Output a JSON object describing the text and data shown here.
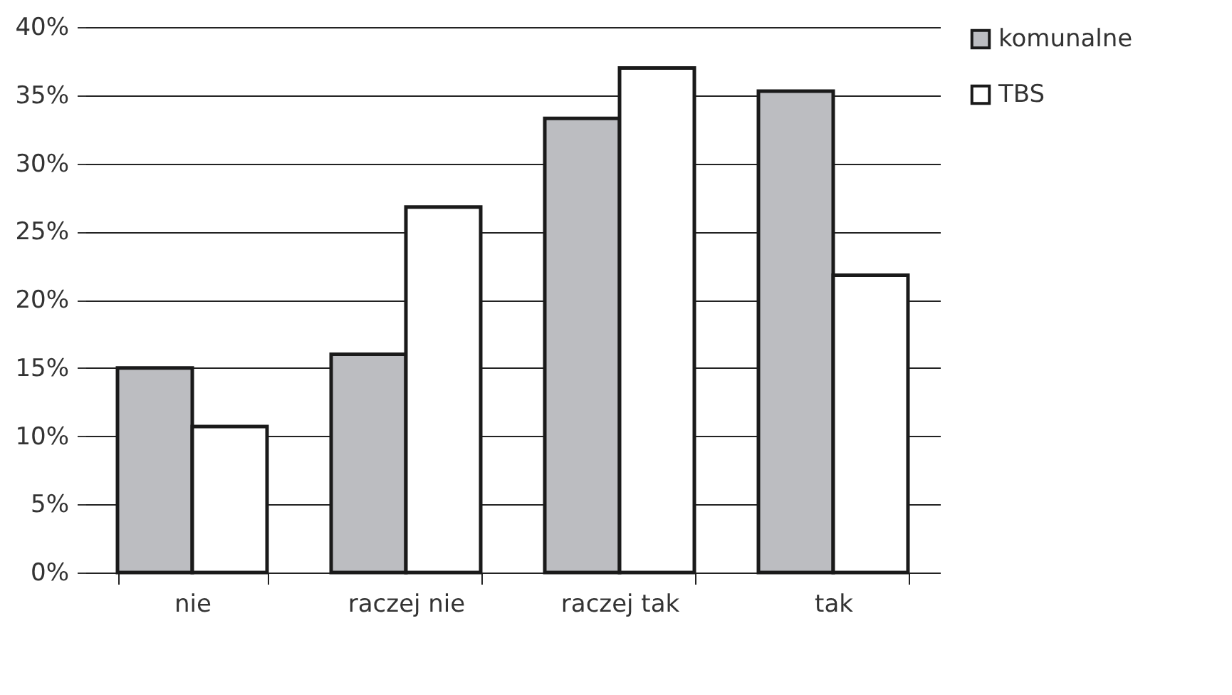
{
  "chart_data": {
    "type": "bar",
    "categories": [
      "nie",
      "raczej nie",
      "raczej tak",
      "tak"
    ],
    "series": [
      {
        "name": "komunalne",
        "color": "#bcbdc1",
        "values": [
          15.0,
          16.0,
          33.3,
          35.3
        ]
      },
      {
        "name": "TBS",
        "color": "#ffffff",
        "values": [
          10.7,
          26.8,
          37.0,
          21.8
        ]
      }
    ],
    "ylim": [
      0,
      40
    ],
    "yticks": [
      {
        "value": 0,
        "label": "0%"
      },
      {
        "value": 5,
        "label": "5%"
      },
      {
        "value": 10,
        "label": "10%"
      },
      {
        "value": 15,
        "label": "15%"
      },
      {
        "value": 20,
        "label": "20%"
      },
      {
        "value": 25,
        "label": "25%"
      },
      {
        "value": 30,
        "label": "30%"
      },
      {
        "value": 35,
        "label": "35%"
      },
      {
        "value": 40,
        "label": "40%"
      }
    ],
    "grid": "y",
    "legend": "right"
  }
}
